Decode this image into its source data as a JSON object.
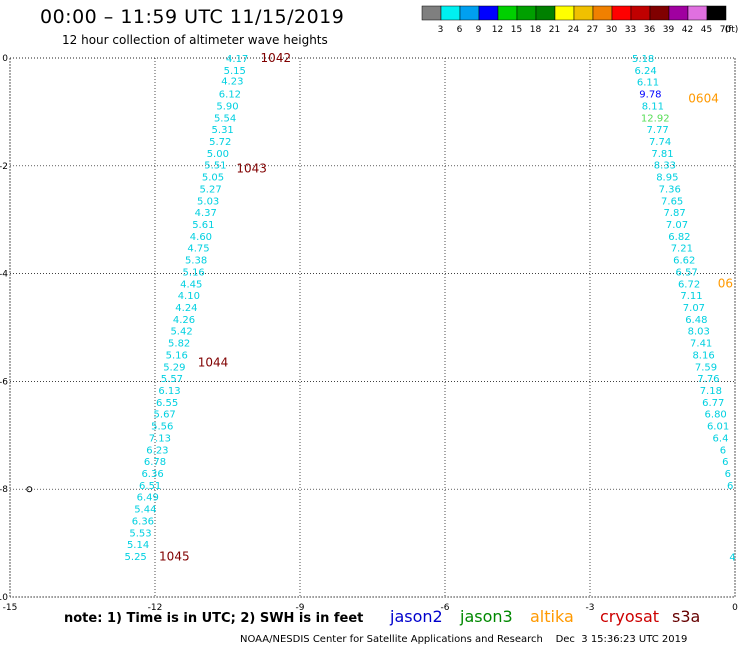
{
  "header": {
    "title": "00:00 – 11:59 UTC 11/15/2019",
    "subtitle": "12 hour collection of altimeter wave heights"
  },
  "colorbar": {
    "ticks": [
      "3",
      "6",
      "9",
      "12",
      "15",
      "18",
      "21",
      "24",
      "27",
      "30",
      "33",
      "36",
      "39",
      "42",
      "45",
      "70",
      "(ft)"
    ],
    "colors": [
      "#7f7f7f",
      "#00f0f0",
      "#00a0f0",
      "#0000ff",
      "#00d000",
      "#00a000",
      "#008000",
      "#ffff00",
      "#f0c000",
      "#f08000",
      "#ff0000",
      "#c00000",
      "#800000",
      "#a000a0",
      "#e070e0",
      "#000000"
    ]
  },
  "footer": {
    "note": "note: 1) Time is in UTC; 2) SWH is in feet",
    "satellites": [
      {
        "name": "jason2",
        "color": "#0000cc"
      },
      {
        "name": "jason3",
        "color": "#008800"
      },
      {
        "name": "altika",
        "color": "#ff9900"
      },
      {
        "name": "cryosat",
        "color": "#cc0000"
      },
      {
        "name": "s3a",
        "color": "#660000"
      }
    ],
    "credits": "NOAA/NESDIS Center for Satellite Applications and Research    Dec  3 15:36:23 UTC 2019"
  },
  "chart_data": {
    "type": "scatter",
    "xlim": [
      -15,
      0
    ],
    "ylim": [
      -10,
      0
    ],
    "xticks": [
      "-15",
      "-12",
      "-9",
      "-6",
      "-3",
      "0"
    ],
    "yticks": [
      "0",
      "-2",
      "-4",
      "-6",
      "-8",
      "-10"
    ],
    "grid": true,
    "tracks": [
      {
        "color": "#00d0e0",
        "points": [
          {
            "x": -10.3,
            "y": 0.0,
            "v": "4.17"
          },
          {
            "x": -10.35,
            "y": -0.22,
            "v": "5.15"
          },
          {
            "x": -10.4,
            "y": -0.42,
            "v": "4.23"
          },
          {
            "x": -10.45,
            "y": -0.66,
            "v": "6.12"
          },
          {
            "x": -10.5,
            "y": -0.88,
            "v": "5.90"
          },
          {
            "x": -10.55,
            "y": -1.1,
            "v": "5.54"
          },
          {
            "x": -10.6,
            "y": -1.32,
            "v": "5.31"
          },
          {
            "x": -10.65,
            "y": -1.54,
            "v": "5.72"
          },
          {
            "x": -10.7,
            "y": -1.76,
            "v": "5.00"
          },
          {
            "x": -10.75,
            "y": -1.98,
            "v": "5.51"
          },
          {
            "x": -10.8,
            "y": -2.2,
            "v": "5.05"
          },
          {
            "x": -10.85,
            "y": -2.42,
            "v": "5.27"
          },
          {
            "x": -10.9,
            "y": -2.64,
            "v": "5.03"
          },
          {
            "x": -10.95,
            "y": -2.86,
            "v": "4.37"
          },
          {
            "x": -11.0,
            "y": -3.08,
            "v": "5.61"
          },
          {
            "x": -11.05,
            "y": -3.3,
            "v": "4.60"
          },
          {
            "x": -11.1,
            "y": -3.52,
            "v": "4.75"
          },
          {
            "x": -11.15,
            "y": -3.74,
            "v": "5.38"
          },
          {
            "x": -11.2,
            "y": -3.96,
            "v": "5.16"
          },
          {
            "x": -11.25,
            "y": -4.18,
            "v": "4.45"
          },
          {
            "x": -11.3,
            "y": -4.4,
            "v": "4.10"
          },
          {
            "x": -11.35,
            "y": -4.62,
            "v": "4.24"
          },
          {
            "x": -11.4,
            "y": -4.84,
            "v": "4.26"
          },
          {
            "x": -11.45,
            "y": -5.06,
            "v": "5.42"
          },
          {
            "x": -11.5,
            "y": -5.28,
            "v": "5.82"
          },
          {
            "x": -11.55,
            "y": -5.5,
            "v": "5.16"
          },
          {
            "x": -11.6,
            "y": -5.72,
            "v": "5.29"
          },
          {
            "x": -11.65,
            "y": -5.94,
            "v": "5.57"
          },
          {
            "x": -11.7,
            "y": -6.16,
            "v": "6.13"
          },
          {
            "x": -11.75,
            "y": -6.38,
            "v": "6.55"
          },
          {
            "x": -11.8,
            "y": -6.6,
            "v": "5.67"
          },
          {
            "x": -11.85,
            "y": -6.82,
            "v": "5.56"
          },
          {
            "x": -11.9,
            "y": -7.04,
            "v": "7.13"
          },
          {
            "x": -11.95,
            "y": -7.26,
            "v": "6.23"
          },
          {
            "x": -12.0,
            "y": -7.48,
            "v": "6.78"
          },
          {
            "x": -12.05,
            "y": -7.7,
            "v": "6.36"
          },
          {
            "x": -12.1,
            "y": -7.92,
            "v": "6.51"
          },
          {
            "x": -12.15,
            "y": -8.14,
            "v": "6.49"
          },
          {
            "x": -12.2,
            "y": -8.36,
            "v": "5.44"
          },
          {
            "x": -12.25,
            "y": -8.58,
            "v": "6.36"
          },
          {
            "x": -12.3,
            "y": -8.8,
            "v": "5.53"
          },
          {
            "x": -12.35,
            "y": -9.02,
            "v": "5.14"
          },
          {
            "x": -12.4,
            "y": -9.24,
            "v": "5.25"
          }
        ]
      },
      {
        "color": "#00d0e0",
        "points": [
          {
            "x": -1.9,
            "y": 0.0,
            "v": "5.18"
          },
          {
            "x": -1.85,
            "y": -0.22,
            "v": "6.24"
          },
          {
            "x": -1.8,
            "y": -0.44,
            "v": "6.11"
          },
          {
            "x": -1.75,
            "y": -0.66,
            "v": "9.78",
            "c": "#0000ff"
          },
          {
            "x": -1.7,
            "y": -0.88,
            "v": "8.11"
          },
          {
            "x": -1.65,
            "y": -1.1,
            "v": "12.92",
            "c": "#55dd55"
          },
          {
            "x": -1.6,
            "y": -1.32,
            "v": "7.77"
          },
          {
            "x": -1.55,
            "y": -1.54,
            "v": "7.74"
          },
          {
            "x": -1.5,
            "y": -1.76,
            "v": "7.81"
          },
          {
            "x": -1.45,
            "y": -1.98,
            "v": "8.33"
          },
          {
            "x": -1.4,
            "y": -2.2,
            "v": "8.95"
          },
          {
            "x": -1.35,
            "y": -2.42,
            "v": "7.36"
          },
          {
            "x": -1.3,
            "y": -2.64,
            "v": "7.65"
          },
          {
            "x": -1.25,
            "y": -2.86,
            "v": "7.87"
          },
          {
            "x": -1.2,
            "y": -3.08,
            "v": "7.07"
          },
          {
            "x": -1.15,
            "y": -3.3,
            "v": "6.82"
          },
          {
            "x": -1.1,
            "y": -3.52,
            "v": "7.21"
          },
          {
            "x": -1.05,
            "y": -3.74,
            "v": "6.62"
          },
          {
            "x": -1.0,
            "y": -3.96,
            "v": "6.57"
          },
          {
            "x": -0.95,
            "y": -4.18,
            "v": "6.72"
          },
          {
            "x": -0.9,
            "y": -4.4,
            "v": "7.11"
          },
          {
            "x": -0.85,
            "y": -4.62,
            "v": "7.07"
          },
          {
            "x": -0.8,
            "y": -4.84,
            "v": "6.48"
          },
          {
            "x": -0.75,
            "y": -5.06,
            "v": "8.03"
          },
          {
            "x": -0.7,
            "y": -5.28,
            "v": "7.41"
          },
          {
            "x": -0.65,
            "y": -5.5,
            "v": "8.16"
          },
          {
            "x": -0.6,
            "y": -5.72,
            "v": "7.59"
          },
          {
            "x": -0.55,
            "y": -5.94,
            "v": "7.76"
          },
          {
            "x": -0.5,
            "y": -6.16,
            "v": "7.18"
          },
          {
            "x": -0.45,
            "y": -6.38,
            "v": "6.77"
          },
          {
            "x": -0.4,
            "y": -6.6,
            "v": "6.80"
          },
          {
            "x": -0.35,
            "y": -6.82,
            "v": "6.01"
          },
          {
            "x": -0.3,
            "y": -7.04,
            "v": "6.4"
          },
          {
            "x": -0.25,
            "y": -7.26,
            "v": "6"
          },
          {
            "x": -0.2,
            "y": -7.48,
            "v": "6"
          },
          {
            "x": -0.15,
            "y": -7.7,
            "v": "6"
          },
          {
            "x": -0.1,
            "y": -7.92,
            "v": "6"
          },
          {
            "x": -0.05,
            "y": -9.25,
            "v": "4"
          }
        ]
      }
    ],
    "annotations": [
      {
        "x": -9.5,
        "y": 0.0,
        "text": "1042",
        "color": "#800000"
      },
      {
        "x": -10.0,
        "y": -2.05,
        "text": "1043",
        "color": "#800000"
      },
      {
        "x": -10.8,
        "y": -5.65,
        "text": "1044",
        "color": "#800000"
      },
      {
        "x": -11.6,
        "y": -9.25,
        "text": "1045",
        "color": "#800000"
      },
      {
        "x": -0.65,
        "y": -0.75,
        "text": "0604",
        "color": "#ff9900"
      },
      {
        "x": -0.2,
        "y": -4.18,
        "text": "06",
        "color": "#ff9900"
      }
    ],
    "markers": [
      {
        "x": -14.6,
        "y": -8.0,
        "shape": "circle"
      }
    ]
  }
}
